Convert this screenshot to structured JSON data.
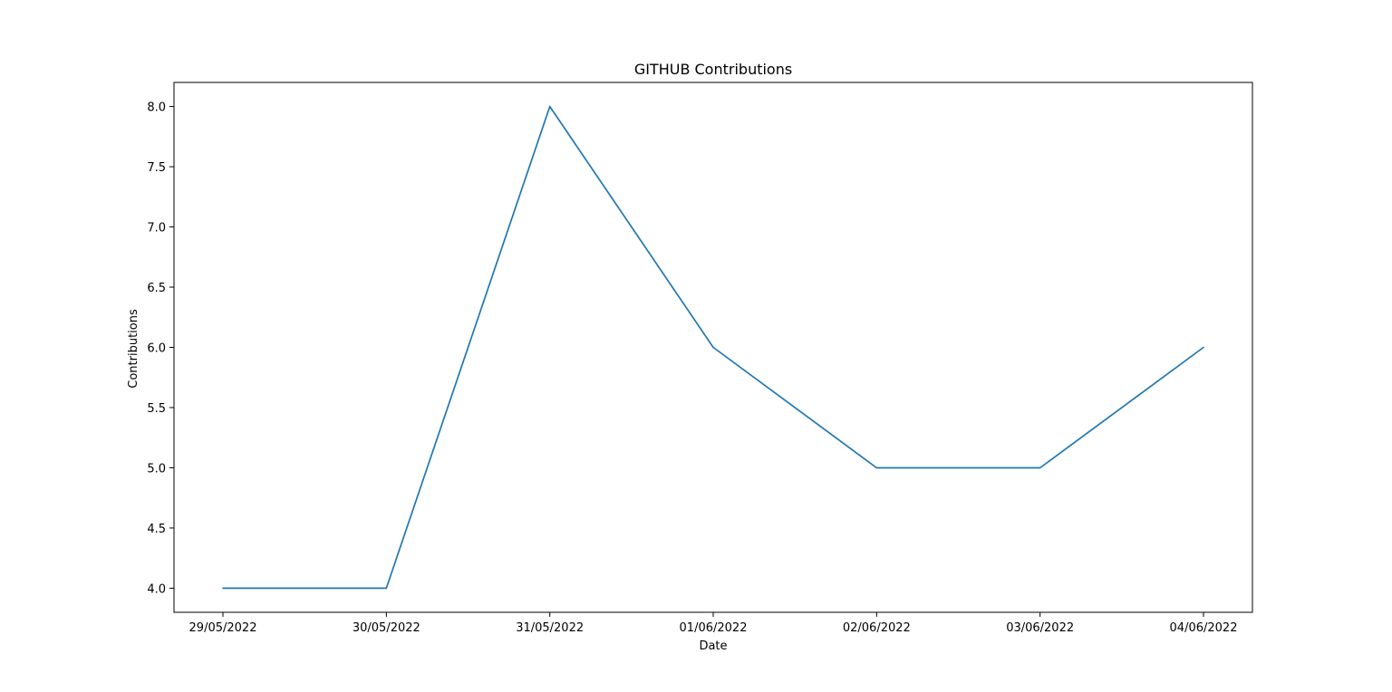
{
  "chart_data": {
    "type": "line",
    "title": "GITHUB Contributions",
    "xlabel": "Date",
    "ylabel": "Contributions",
    "categories": [
      "29/05/2022",
      "30/05/2022",
      "31/05/2022",
      "01/06/2022",
      "02/06/2022",
      "03/06/2022",
      "04/06/2022"
    ],
    "series": [
      {
        "values": [
          4,
          4,
          8,
          6,
          5,
          5,
          6
        ],
        "color": "#1f77b4"
      }
    ],
    "ylim": [
      3.8,
      8.2
    ],
    "yticks": [
      "4.0",
      "4.5",
      "5.0",
      "5.5",
      "6.0",
      "6.5",
      "7.0",
      "7.5",
      "8.0"
    ],
    "grid": false,
    "legend": "none"
  }
}
